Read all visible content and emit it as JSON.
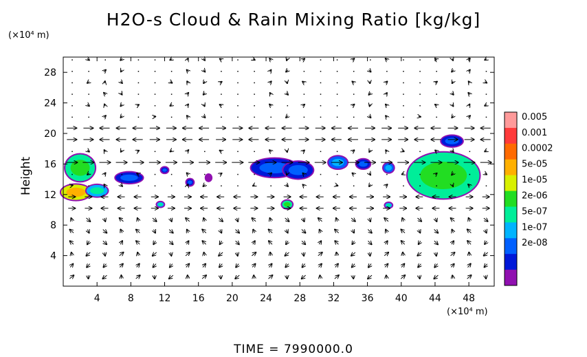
{
  "chart_data": {
    "type": "heatmap",
    "title": "H2O-s Cloud & Rain Mixing Ratio [kg/kg]",
    "ylabel": "Height",
    "y_unit": "(×10⁴ m)",
    "x_unit": "(×10⁴ m)",
    "x_ticks": [
      "4",
      "8",
      "12",
      "16",
      "20",
      "24",
      "28",
      "32",
      "36",
      "40",
      "44",
      "48"
    ],
    "y_ticks": [
      "4",
      "8",
      "12",
      "16",
      "20",
      "24",
      "28"
    ],
    "xlim": [
      0,
      51
    ],
    "ylim": [
      0,
      30
    ],
    "colorbar": {
      "labels": [
        "0.005",
        "0.001",
        "0.0002",
        "5e-05",
        "1e-05",
        "2e-06",
        "5e-07",
        "1e-07",
        "2e-08"
      ],
      "colors": [
        "#ff9a9a",
        "#ff3a3a",
        "#ff6a00",
        "#ffb000",
        "#d8f000",
        "#22dd22",
        "#00ee99",
        "#00b4ff",
        "#0060ff",
        "#0018d8",
        "#9010b0"
      ]
    },
    "cloud_regions": [
      {
        "x": 2.0,
        "y": 15.5,
        "w": 3.5,
        "h": 3.5,
        "level": 5
      },
      {
        "x": 1.5,
        "y": 12.3,
        "w": 3.5,
        "h": 2.0,
        "level": 3
      },
      {
        "x": 4.0,
        "y": 12.5,
        "w": 2.5,
        "h": 1.5,
        "level": 6
      },
      {
        "x": 7.8,
        "y": 14.2,
        "w": 3.2,
        "h": 1.4,
        "level": 8
      },
      {
        "x": 11.5,
        "y": 10.7,
        "w": 0.8,
        "h": 0.6,
        "level": 6
      },
      {
        "x": 12.0,
        "y": 15.2,
        "w": 0.8,
        "h": 0.7,
        "level": 8
      },
      {
        "x": 15.0,
        "y": 13.6,
        "w": 0.8,
        "h": 0.8,
        "level": 8
      },
      {
        "x": 17.2,
        "y": 14.2,
        "w": 0.6,
        "h": 0.8,
        "level": 10
      },
      {
        "x": 25.0,
        "y": 15.5,
        "w": 5.5,
        "h": 2.4,
        "level": 8
      },
      {
        "x": 27.8,
        "y": 15.2,
        "w": 3.5,
        "h": 2.2,
        "level": 8
      },
      {
        "x": 26.5,
        "y": 10.7,
        "w": 1.2,
        "h": 1.0,
        "level": 5
      },
      {
        "x": 32.5,
        "y": 16.2,
        "w": 2.2,
        "h": 1.6,
        "level": 7
      },
      {
        "x": 35.5,
        "y": 16.0,
        "w": 1.6,
        "h": 1.2,
        "level": 8
      },
      {
        "x": 38.5,
        "y": 15.5,
        "w": 1.2,
        "h": 1.2,
        "level": 7
      },
      {
        "x": 38.5,
        "y": 10.6,
        "w": 0.8,
        "h": 0.6,
        "level": 6
      },
      {
        "x": 45.0,
        "y": 14.5,
        "w": 8.5,
        "h": 6.0,
        "level": 5
      },
      {
        "x": 46.0,
        "y": 19.0,
        "w": 2.5,
        "h": 1.4,
        "level": 8
      }
    ]
  },
  "time_label": "TIME  =  7990000.0"
}
